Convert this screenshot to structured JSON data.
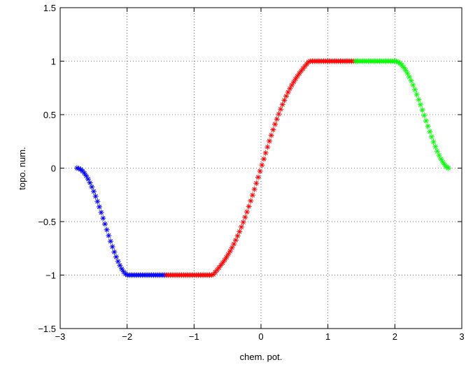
{
  "chart_data": {
    "type": "scatter",
    "title": "",
    "xlabel": "chem. pot.",
    "ylabel": "topo. num.",
    "xlim": [
      -3,
      3
    ],
    "ylim": [
      -1.5,
      1.5
    ],
    "xticks": [
      -3,
      -2,
      -1,
      0,
      1,
      2,
      3
    ],
    "yticks": [
      -1.5,
      -1,
      -0.5,
      0,
      0.5,
      1,
      1.5
    ],
    "xtick_labels": [
      "−3",
      "−2",
      "−1",
      "0",
      "1",
      "2",
      "3"
    ],
    "ytick_labels": [
      "−1.5",
      "−1",
      "−0.5",
      "0",
      "0.5",
      "1",
      "1.5"
    ],
    "grid": true,
    "marker": "asterisk",
    "series": [
      {
        "color": "#0000ff",
        "x_range": [
          -2.75,
          -1.41
        ],
        "segment": "blue"
      },
      {
        "color": "#ff0000",
        "x_range": [
          -1.41,
          1.41
        ],
        "segment": "red"
      },
      {
        "color": "#00ff00",
        "x_range": [
          1.41,
          2.8
        ],
        "segment": "green"
      }
    ]
  }
}
